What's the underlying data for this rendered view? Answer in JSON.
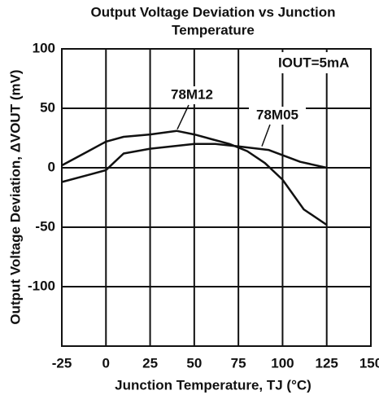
{
  "chart_data": {
    "type": "line",
    "title": [
      "Output Voltage Deviation vs Junction",
      "Temperature"
    ],
    "xlabel": "Junction Temperature, TJ (°C)",
    "ylabel": "Output Voltage Deviation, ΔVOUT (mV)",
    "annotations": [
      "78M12",
      "78M05",
      "IOUT=5mA"
    ],
    "xlim": [
      -25,
      150
    ],
    "xticks": [
      -25,
      0,
      25,
      50,
      75,
      100,
      125,
      150
    ],
    "ylim": [
      -150,
      100
    ],
    "yticks": [
      -100,
      -50,
      0,
      50,
      100
    ],
    "grid": true,
    "series": [
      {
        "name": "78M12",
        "color": "#111111",
        "x": [
          -25,
          -10,
          0,
          10,
          25,
          40,
          50,
          60,
          70,
          80,
          90,
          100,
          112,
          125
        ],
        "values": [
          2,
          14,
          22,
          26,
          28,
          31,
          28,
          24,
          20,
          14,
          4,
          -10,
          -35,
          -48
        ]
      },
      {
        "name": "78M05",
        "color": "#111111",
        "x": [
          -25,
          -10,
          0,
          5,
          10,
          25,
          50,
          62,
          75,
          92,
          110,
          125
        ],
        "values": [
          -12,
          -6,
          -2,
          5,
          12,
          16,
          20,
          20,
          18,
          15,
          5,
          0
        ]
      }
    ]
  }
}
